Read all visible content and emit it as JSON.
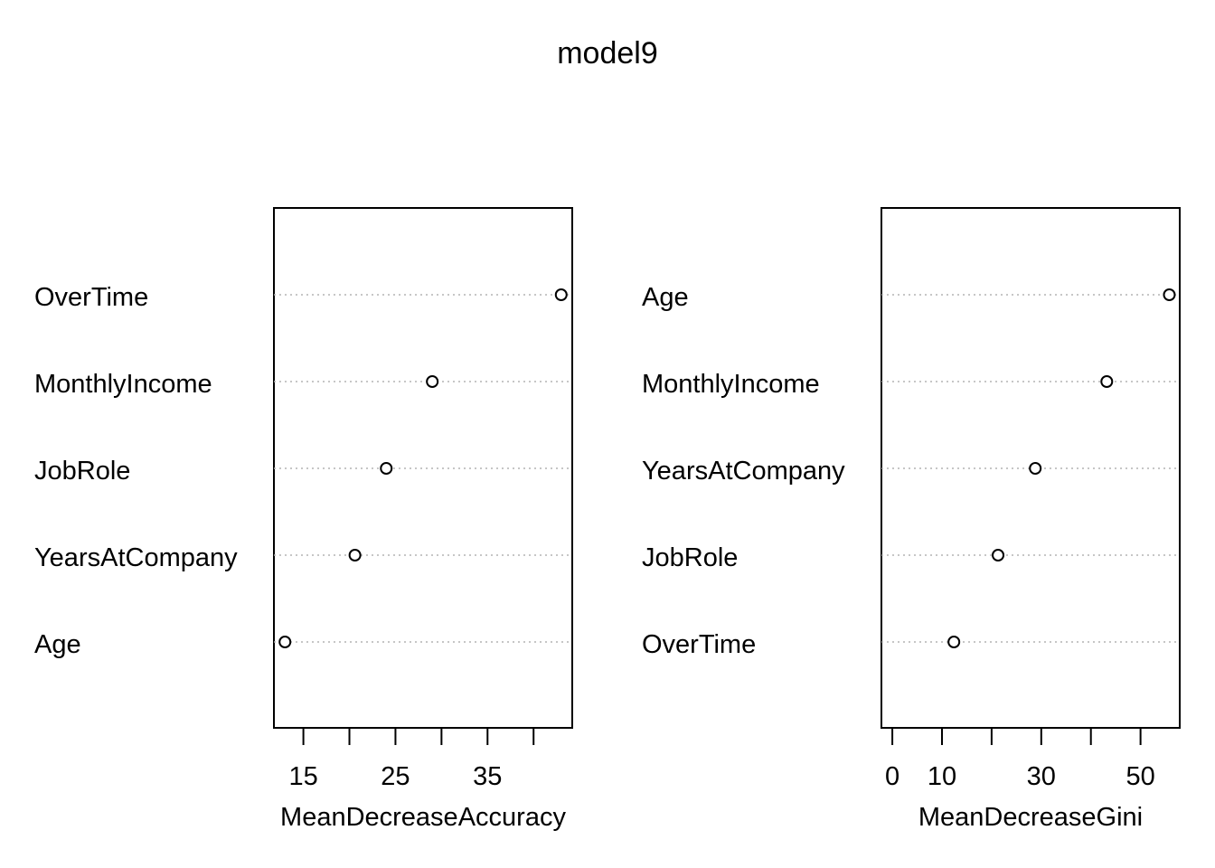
{
  "title": "model9",
  "chart_data": [
    {
      "type": "scatter",
      "subtype": "dotchart",
      "xlabel": "MeanDecreaseAccuracy",
      "categories": [
        "OverTime",
        "MonthlyIncome",
        "JobRole",
        "YearsAtCompany",
        "Age"
      ],
      "values": [
        43.0,
        29.0,
        24.0,
        20.6,
        13.0
      ],
      "xlim": [
        11.8,
        44.2
      ],
      "xticks": [
        15,
        20,
        25,
        30,
        35,
        40
      ],
      "xtick_labels": [
        "15",
        "",
        "25",
        "",
        "35",
        ""
      ],
      "grid": "dotted horizontal guide lines"
    },
    {
      "type": "scatter",
      "subtype": "dotchart",
      "xlabel": "MeanDecreaseGini",
      "categories": [
        "Age",
        "MonthlyIncome",
        "YearsAtCompany",
        "JobRole",
        "OverTime"
      ],
      "values": [
        55.8,
        43.2,
        28.8,
        21.3,
        12.4
      ],
      "xlim": [
        -2.2,
        57.9
      ],
      "xticks": [
        0,
        10,
        20,
        30,
        40,
        50
      ],
      "xtick_labels": [
        "0",
        "10",
        "",
        "30",
        "",
        "50"
      ],
      "grid": "dotted horizontal guide lines"
    }
  ]
}
